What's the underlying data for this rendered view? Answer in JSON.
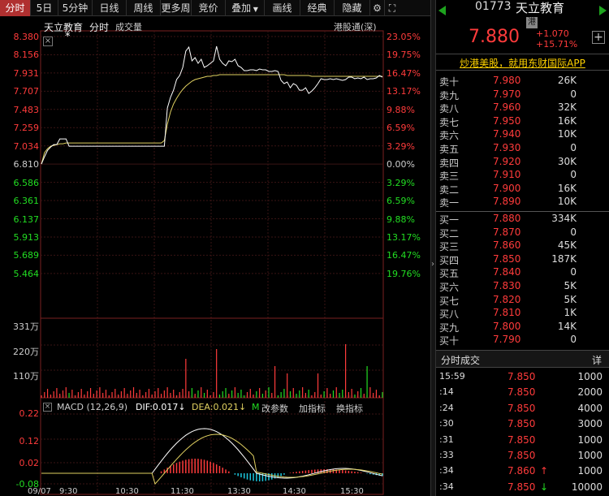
{
  "toolbar": {
    "tabs": [
      "分时",
      "5日",
      "5分钟",
      "日线",
      "周线",
      "更多周",
      "竞价",
      "叠加",
      "画线",
      "经典",
      "隐藏"
    ],
    "active": "分时"
  },
  "colors": {
    "up": "#ff3b3b",
    "down": "#22dd22",
    "flat": "#cccccc",
    "accent": "#b03030",
    "price_line": "#ffffff",
    "avg_line": "#e0d060",
    "macd_dif": "#ffffff",
    "macd_dea": "#e0d060",
    "yellow": "#ffd200"
  },
  "chart": {
    "stock_name": "天立教育",
    "mode": "分时",
    "volume_label": "成交量",
    "connect_label": "港股通(深)",
    "close_button": "×",
    "star": "*",
    "price_ticks": [
      "8.380",
      "8.156",
      "7.931",
      "7.707",
      "7.483",
      "7.259",
      "7.034",
      "6.810",
      "6.586",
      "6.361",
      "6.137",
      "5.913",
      "5.689",
      "5.464"
    ],
    "pct_ticks": [
      "23.05%",
      "19.75%",
      "16.47%",
      "13.17%",
      "9.88%",
      "6.59%",
      "3.29%",
      "0.00%",
      "3.29%",
      "6.59%",
      "9.88%",
      "13.17%",
      "16.47%",
      "19.76%"
    ],
    "vol_ticks": [
      "331万",
      "220万",
      "110万"
    ],
    "macd_ticks": [
      "0.22",
      "0.12",
      "0.02",
      "-0.08"
    ],
    "time_labels": [
      "09/07",
      "9:30",
      "10:30",
      "11:30",
      "13:30",
      "14:30",
      "15:30"
    ],
    "macd": {
      "title": "MACD (12,26,9)",
      "dif_label": "DIF:",
      "dif_value": "0.017",
      "dif_arrow": "↓",
      "dea_label": "DEA:",
      "dea_value": "0.021",
      "dea_arrow": "↓",
      "m_label": "M",
      "buttons": [
        "改参数",
        "加指标",
        "换指标"
      ]
    }
  },
  "chart_data": {
    "type": "line",
    "title": "",
    "preclose": 6.81,
    "ylim": [
      5.464,
      8.38
    ],
    "price": [
      6.81,
      6.9,
      6.98,
      7.02,
      7.05,
      7.05,
      7.12,
      7.12,
      7.12,
      7.03,
      7.03,
      7.03,
      7.03,
      7.03,
      7.03,
      7.03,
      7.03,
      7.03,
      7.03,
      7.03,
      7.03,
      7.03,
      7.03,
      7.03,
      7.03,
      7.03,
      7.03,
      7.03,
      7.03,
      7.03,
      7.03,
      7.03,
      7.03,
      7.03,
      7.03,
      7.03,
      7.03,
      7.03,
      7.03,
      7.03,
      7.03,
      7.5,
      7.63,
      7.72,
      7.85,
      7.9,
      8.0,
      8.2,
      8.25,
      8.08,
      8.12,
      8.05,
      8.1,
      8.0,
      8.02,
      8.05,
      8.08,
      8.26,
      8.1,
      8.05,
      8.02,
      8.08,
      8.07,
      8.1,
      8.02,
      8.0,
      7.96,
      7.96,
      7.97,
      7.97,
      7.96,
      7.98,
      7.97,
      7.97,
      7.95,
      7.95,
      7.96,
      7.95,
      7.84,
      7.8,
      7.82,
      7.75,
      7.8,
      7.78,
      7.72,
      7.72,
      7.75,
      7.68,
      7.71,
      7.75,
      7.8,
      7.86,
      7.85,
      7.85,
      7.86,
      7.85,
      7.86,
      7.85,
      7.84,
      7.85,
      7.88,
      7.88,
      7.86,
      7.87,
      7.86,
      7.88,
      7.85,
      7.86,
      7.86,
      7.87,
      7.9,
      7.88
    ],
    "avg": [
      6.81,
      6.95,
      7.0,
      7.03,
      7.04,
      7.05,
      7.06,
      7.06,
      7.07,
      7.07,
      7.07,
      7.07,
      7.07,
      7.07,
      7.07,
      7.07,
      7.07,
      7.07,
      7.07,
      7.07,
      7.07,
      7.07,
      7.07,
      7.07,
      7.07,
      7.07,
      7.07,
      7.07,
      7.07,
      7.07,
      7.07,
      7.07,
      7.07,
      7.07,
      7.07,
      7.07,
      7.07,
      7.07,
      7.07,
      7.07,
      7.1,
      7.3,
      7.45,
      7.55,
      7.62,
      7.68,
      7.73,
      7.77,
      7.8,
      7.83,
      7.85,
      7.86,
      7.87,
      7.88,
      7.89,
      7.89,
      7.9,
      7.9,
      7.91,
      7.91,
      7.91,
      7.91,
      7.91,
      7.91,
      7.91,
      7.91,
      7.91,
      7.91,
      7.91,
      7.91,
      7.91,
      7.91,
      7.91,
      7.91,
      7.91,
      7.91,
      7.91,
      7.91,
      7.91,
      7.91,
      7.9,
      7.9,
      7.9,
      7.9,
      7.9,
      7.9,
      7.9,
      7.9,
      7.89,
      7.89,
      7.89,
      7.89,
      7.89,
      7.89,
      7.89,
      7.89,
      7.89,
      7.89,
      7.89,
      7.89,
      7.89,
      7.89,
      7.89,
      7.89,
      7.89,
      7.89,
      7.89,
      7.89,
      7.89,
      7.89,
      7.89,
      7.89
    ]
  },
  "quote": {
    "code": "01773",
    "name": "天立教育",
    "market_tag": "港",
    "price": "7.880",
    "change": "+1.070",
    "change_pct": "+15.71%",
    "plus_button": "+",
    "promo": "炒港美股，就用东财国际APP"
  },
  "sell_book": [
    {
      "label": "卖十",
      "price": "7.980",
      "vol": "26K"
    },
    {
      "label": "卖九",
      "price": "7.970",
      "vol": "0"
    },
    {
      "label": "卖八",
      "price": "7.960",
      "vol": "32K"
    },
    {
      "label": "卖七",
      "price": "7.950",
      "vol": "16K"
    },
    {
      "label": "卖六",
      "price": "7.940",
      "vol": "10K"
    },
    {
      "label": "卖五",
      "price": "7.930",
      "vol": "0"
    },
    {
      "label": "卖四",
      "price": "7.920",
      "vol": "30K"
    },
    {
      "label": "卖三",
      "price": "7.910",
      "vol": "0"
    },
    {
      "label": "卖二",
      "price": "7.900",
      "vol": "16K"
    },
    {
      "label": "卖一",
      "price": "7.890",
      "vol": "10K"
    }
  ],
  "buy_book": [
    {
      "label": "买一",
      "price": "7.880",
      "vol": "334K"
    },
    {
      "label": "买二",
      "price": "7.870",
      "vol": "0"
    },
    {
      "label": "买三",
      "price": "7.860",
      "vol": "45K"
    },
    {
      "label": "买四",
      "price": "7.850",
      "vol": "187K"
    },
    {
      "label": "买五",
      "price": "7.840",
      "vol": "0"
    },
    {
      "label": "买六",
      "price": "7.830",
      "vol": "5K"
    },
    {
      "label": "买七",
      "price": "7.820",
      "vol": "5K"
    },
    {
      "label": "买八",
      "price": "7.810",
      "vol": "1K"
    },
    {
      "label": "买九",
      "price": "7.800",
      "vol": "14K"
    },
    {
      "label": "买十",
      "price": "7.790",
      "vol": "0"
    }
  ],
  "trades": {
    "title": "分时成交",
    "detail_button": "详",
    "rows": [
      {
        "time": "15:59",
        "price": "7.850",
        "arrow": "",
        "vol": "1000"
      },
      {
        "time": ":14",
        "price": "7.850",
        "arrow": "",
        "vol": "2000"
      },
      {
        "time": ":24",
        "price": "7.850",
        "arrow": "",
        "vol": "4000"
      },
      {
        "time": ":30",
        "price": "7.850",
        "arrow": "",
        "vol": "3000"
      },
      {
        "time": ":31",
        "price": "7.850",
        "arrow": "",
        "vol": "1000"
      },
      {
        "time": ":33",
        "price": "7.850",
        "arrow": "",
        "vol": "1000"
      },
      {
        "time": ":34",
        "price": "7.860",
        "arrow": "↑",
        "vol": "1000"
      },
      {
        "time": ":34",
        "price": "7.850",
        "arrow": "↓",
        "vol": "10000"
      }
    ]
  }
}
